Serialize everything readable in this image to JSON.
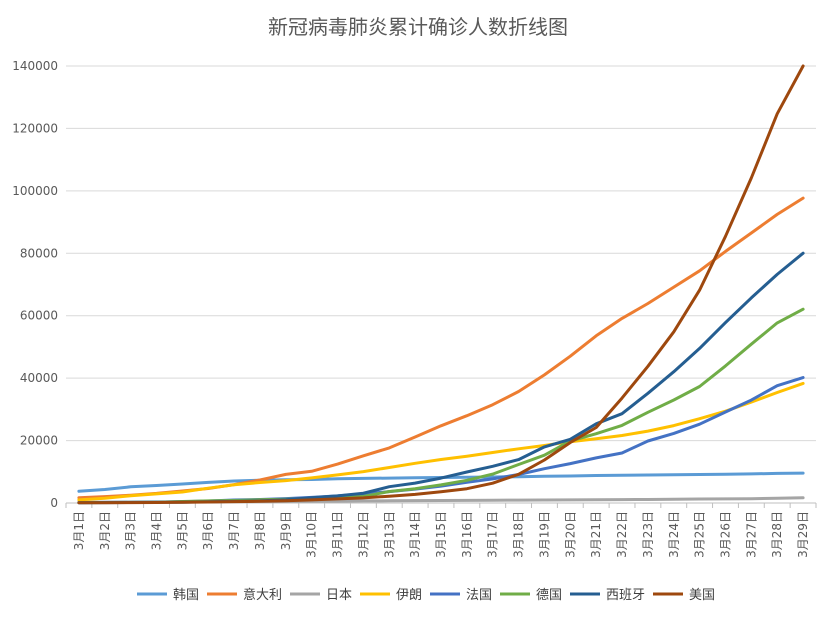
{
  "chart_data": {
    "type": "line",
    "title": "新冠病毒肺炎累计确诊人数折线图",
    "xlabel": "",
    "ylabel": "",
    "ylim": [
      0,
      140000
    ],
    "yticks": [
      "0",
      "20000",
      "40000",
      "60000",
      "80000",
      "100000",
      "120000",
      "140000"
    ],
    "grid": true,
    "legend_position": "bottom",
    "categories": [
      "3月1日",
      "3月2日",
      "3月3日",
      "3月4日",
      "3月5日",
      "3月6日",
      "3月7日",
      "3月8日",
      "3月9日",
      "3月10日",
      "3月11日",
      "3月12日",
      "3月13日",
      "3月14日",
      "3月15日",
      "3月16日",
      "3月17日",
      "3月18日",
      "3月19日",
      "3月20日",
      "3月21日",
      "3月22日",
      "3月23日",
      "3月24日",
      "3月25日",
      "3月26日",
      "3月27日",
      "3月28日",
      "3月29日"
    ],
    "series": [
      {
        "name": "韩国",
        "color": "#5b9bd5",
        "values": [
          3736,
          4335,
          5186,
          5621,
          6088,
          6593,
          7041,
          7313,
          7478,
          7513,
          7755,
          7869,
          7979,
          8086,
          8162,
          8236,
          8320,
          8413,
          8565,
          8652,
          8799,
          8897,
          8961,
          9037,
          9137,
          9241,
          9332,
          9478,
          9583
        ]
      },
      {
        "name": "意大利",
        "color": "#ed7d31",
        "values": [
          1694,
          2036,
          2502,
          3089,
          3858,
          4636,
          5883,
          7375,
          9172,
          10149,
          12462,
          15113,
          17660,
          21157,
          24747,
          27980,
          31506,
          35713,
          41035,
          47021,
          53578,
          59138,
          63927,
          69176,
          74386,
          80589,
          86498,
          92472,
          97689
        ]
      },
      {
        "name": "日本",
        "color": "#a5a5a5",
        "values": [
          254,
          268,
          284,
          317,
          349,
          408,
          455,
          488,
          514,
          568,
          620,
          675,
          716,
          780,
          814,
          829,
          878,
          914,
          950,
          1007,
          1054,
          1089,
          1128,
          1193,
          1268,
          1307,
          1387,
          1499,
          1693
        ]
      },
      {
        "name": "伊朗",
        "color": "#ffc000",
        "values": [
          978,
          1501,
          2336,
          2922,
          3513,
          4747,
          5823,
          6566,
          7161,
          8042,
          9000,
          10075,
          11364,
          12729,
          13938,
          14991,
          16169,
          17361,
          18407,
          19644,
          20610,
          21638,
          23049,
          24811,
          27017,
          29406,
          32332,
          35408,
          38309
        ]
      },
      {
        "name": "法国",
        "color": "#4472c4",
        "values": [
          130,
          191,
          212,
          285,
          423,
          653,
          949,
          1126,
          1412,
          1784,
          2281,
          2876,
          3661,
          4469,
          5423,
          6633,
          7730,
          9134,
          10995,
          12612,
          14459,
          16018,
          19856,
          22302,
          25233,
          29155,
          32964,
          37575,
          40174
        ]
      },
      {
        "name": "德国",
        "color": "#70ad47",
        "values": [
          130,
          159,
          196,
          262,
          482,
          670,
          799,
          1040,
          1176,
          1457,
          1908,
          2078,
          3675,
          4585,
          5795,
          7272,
          9257,
          12327,
          15320,
          19848,
          22213,
          24873,
          29056,
          32986,
          37323,
          43938,
          50871,
          57695,
          62095
        ]
      },
      {
        "name": "西班牙",
        "color": "#255e91",
        "values": [
          84,
          120,
          165,
          222,
          259,
          400,
          500,
          673,
          1073,
          1695,
          2277,
          3146,
          5232,
          6391,
          7988,
          9942,
          11748,
          13910,
          17963,
          20410,
          25374,
          28603,
          35136,
          42058,
          49515,
          57786,
          65719,
          73235,
          80031
        ]
      },
      {
        "name": "美国",
        "color": "#9e480e",
        "values": [
          75,
          100,
          124,
          158,
          221,
          319,
          435,
          541,
          704,
          994,
          1301,
          1630,
          2183,
          2770,
          3613,
          4596,
          6344,
          9197,
          13779,
          19367,
          24192,
          33592,
          43781,
          54856,
          68211,
          85435,
          104126,
          124686,
          143025
        ]
      }
    ]
  }
}
